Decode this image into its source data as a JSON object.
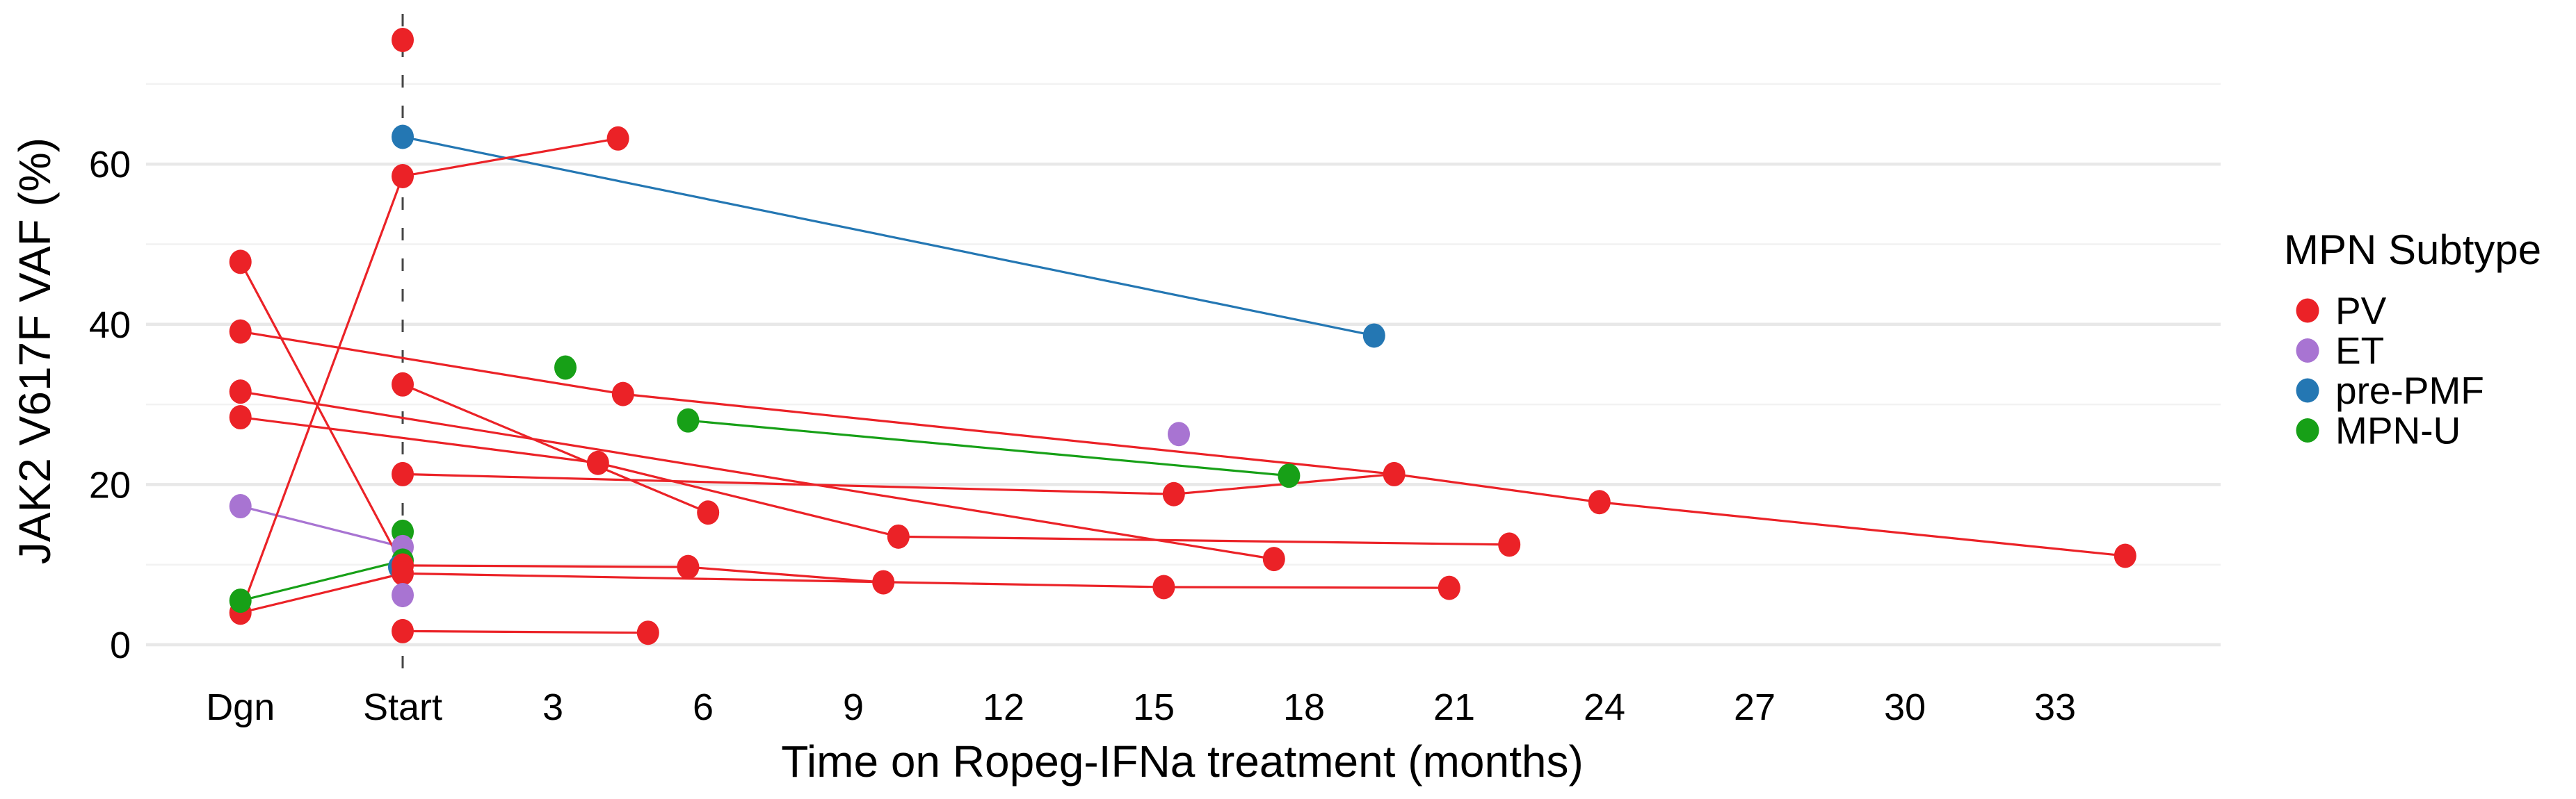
{
  "chart_data": {
    "type": "scatter-line",
    "title": "",
    "xlabel": "Time on Ropeg-IFNa treatment (months)",
    "ylabel": "JAK2 V617F VAF (%)",
    "x_ticks": [
      {
        "label": "Dgn",
        "m": -3.24
      },
      {
        "label": "Start",
        "m": 0
      },
      {
        "label": "3",
        "m": 3
      },
      {
        "label": "6",
        "m": 6
      },
      {
        "label": "9",
        "m": 9
      },
      {
        "label": "12",
        "m": 12
      },
      {
        "label": "15",
        "m": 15
      },
      {
        "label": "18",
        "m": 18
      },
      {
        "label": "21",
        "m": 21
      },
      {
        "label": "24",
        "m": 24
      },
      {
        "label": "27",
        "m": 27
      },
      {
        "label": "30",
        "m": 30
      },
      {
        "label": "33",
        "m": 33
      }
    ],
    "y_major_ticks": [
      0,
      20,
      40,
      60
    ],
    "y_minor_gridlines": [
      10,
      30,
      50,
      70
    ],
    "xlim": [
      -5.1,
      36.3
    ],
    "ylim": [
      -2.2,
      79.2
    ],
    "vline_month": 0,
    "grid": "horizontal-only",
    "legend": {
      "title": "MPN Subtype",
      "position": "right",
      "entries": [
        {
          "label": "PV",
          "color": "#EB2227"
        },
        {
          "label": "ET",
          "color": "#A874D2"
        },
        {
          "label": "pre-PMF",
          "color": "#2477B3"
        },
        {
          "label": "MPN-U",
          "color": "#17A017"
        }
      ]
    },
    "series": [
      {
        "name": "pre-PMF",
        "color": "#2477B3",
        "z_default": 1,
        "points": [
          [
            0,
            63.4
          ],
          [
            -0.07,
            9.7,
            5
          ],
          [
            19.4,
            38.6
          ]
        ],
        "lines": [
          [
            [
              0,
              63.4
            ],
            [
              19.4,
              38.6
            ]
          ]
        ]
      },
      {
        "name": "MPN-U",
        "color": "#17A017",
        "z_default": 2,
        "points": [
          [
            -3.24,
            5.5,
            7
          ],
          [
            0,
            14.1
          ],
          [
            0,
            10.5,
            4
          ],
          [
            3.25,
            34.6
          ],
          [
            5.7,
            28.0
          ],
          [
            17.7,
            21.1
          ]
        ],
        "lines": [
          [
            [
              -3.24,
              5.5
            ],
            [
              0,
              10.5
            ]
          ],
          [
            [
              5.7,
              28.0
            ],
            [
              17.7,
              21.1
            ]
          ]
        ]
      },
      {
        "name": "ET",
        "color": "#A874D2",
        "z_default": 3,
        "points": [
          [
            -3.24,
            17.3
          ],
          [
            0,
            12.2
          ],
          [
            0,
            6.2,
            7
          ],
          [
            15.5,
            26.3
          ]
        ],
        "lines": [
          [
            [
              -3.24,
              17.3
            ],
            [
              0,
              12.2
            ]
          ]
        ]
      },
      {
        "name": "PV",
        "color": "#EB2227",
        "z_default": 6,
        "points": [
          [
            -3.24,
            47.8
          ],
          [
            -3.24,
            39.1
          ],
          [
            -3.24,
            31.6
          ],
          [
            -3.24,
            28.4
          ],
          [
            -3.24,
            4.0
          ],
          [
            0,
            75.5
          ],
          [
            0,
            58.5
          ],
          [
            0,
            32.5
          ],
          [
            0,
            21.3
          ],
          [
            0,
            9.9
          ],
          [
            0,
            8.9
          ],
          [
            0,
            1.7
          ],
          [
            4.3,
            63.2
          ],
          [
            4.4,
            31.3
          ],
          [
            3.9,
            22.7
          ],
          [
            6.1,
            16.5
          ],
          [
            5.7,
            9.7
          ],
          [
            4.9,
            1.5
          ],
          [
            9.6,
            7.8
          ],
          [
            9.9,
            13.5
          ],
          [
            15.2,
            7.2
          ],
          [
            15.4,
            18.8
          ],
          [
            17.4,
            10.7
          ],
          [
            19.8,
            21.3
          ],
          [
            20.9,
            7.1
          ],
          [
            22.1,
            12.5
          ],
          [
            23.9,
            17.8
          ],
          [
            34.4,
            11.1
          ]
        ],
        "lines": [
          [
            [
              -3.24,
              47.8
            ],
            [
              0,
              9.9
            ],
            [
              5.7,
              9.7
            ],
            [
              9.6,
              7.8
            ]
          ],
          [
            [
              -3.24,
              4.0
            ],
            [
              0,
              58.5
            ],
            [
              4.3,
              63.2
            ]
          ],
          [
            [
              -3.24,
              4.0
            ],
            [
              0,
              8.9
            ],
            [
              15.2,
              7.2
            ],
            [
              20.9,
              7.1
            ]
          ],
          [
            [
              -3.24,
              39.1
            ],
            [
              4.4,
              31.3
            ],
            [
              19.8,
              21.3
            ],
            [
              23.9,
              17.8
            ],
            [
              34.4,
              11.1
            ]
          ],
          [
            [
              -3.24,
              31.6
            ],
            [
              17.4,
              10.7
            ]
          ],
          [
            [
              -3.24,
              28.4
            ],
            [
              3.9,
              22.7
            ],
            [
              9.9,
              13.5
            ],
            [
              22.1,
              12.5
            ]
          ],
          [
            [
              0,
              32.5
            ],
            [
              6.1,
              16.5
            ]
          ],
          [
            [
              0,
              21.3
            ],
            [
              15.4,
              18.8
            ],
            [
              19.8,
              21.3
            ]
          ],
          [
            [
              0,
              1.7
            ],
            [
              4.9,
              1.5
            ]
          ]
        ]
      }
    ],
    "style": {
      "background": "#ffffff",
      "grid_major_color": "#E8E8E8",
      "grid_minor_color": "#F2F2F2",
      "vline_color": "#454545",
      "text_color": "#000000",
      "point_rx": 16,
      "point_ry": 17.5,
      "line_width": 3.2
    }
  }
}
